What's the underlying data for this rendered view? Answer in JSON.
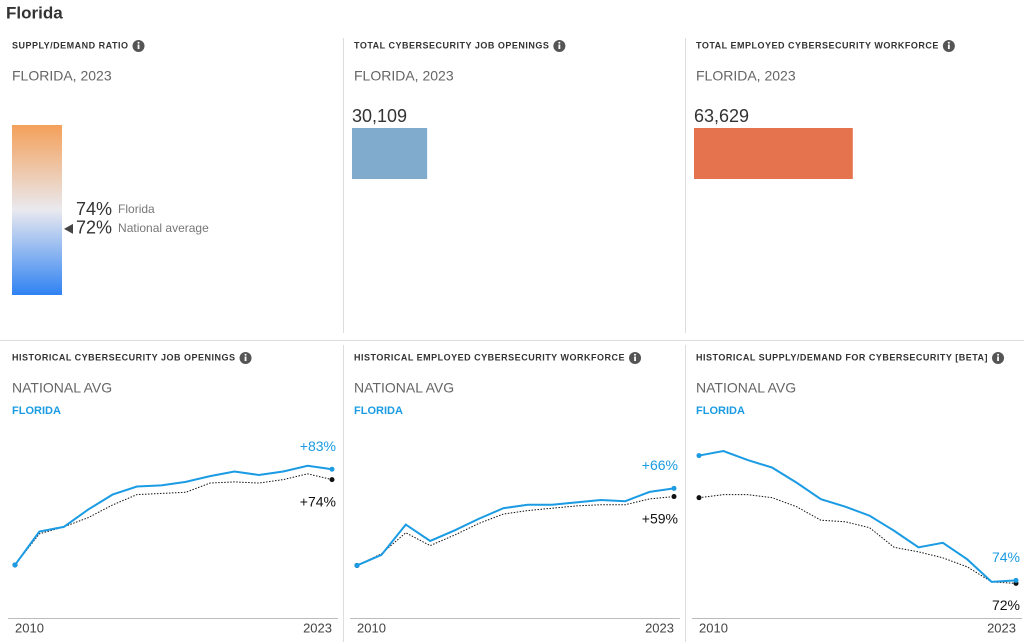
{
  "title": "Florida",
  "chart_data": [
    {
      "type": "gauge",
      "title": "SUPPLY/DEMAND RATIO",
      "subtitle": "FLORIDA, 2023",
      "ylim": [
        65,
        83
      ],
      "gradient": [
        "#f4a05a",
        "#e9e9ef",
        "#2f82f2"
      ],
      "series": [
        {
          "name": "Florida",
          "values": [
            74
          ],
          "value_labels": [
            "74%"
          ]
        },
        {
          "name": "National average",
          "values": [
            72
          ],
          "value_labels": [
            "72%"
          ]
        }
      ]
    },
    {
      "type": "bar",
      "title": "TOTAL CYBERSECURITY JOB OPENINGS",
      "subtitle": "FLORIDA, 2023",
      "values": [
        30109
      ],
      "value_labels": [
        "30,109"
      ],
      "color": "#80abcd",
      "xlim": [
        0,
        125000
      ]
    },
    {
      "type": "bar",
      "title": "TOTAL EMPLOYED CYBERSECURITY WORKFORCE",
      "subtitle": "FLORIDA, 2023",
      "values": [
        63629
      ],
      "value_labels": [
        "63,629"
      ],
      "color": "#e5734d",
      "xlim": [
        0,
        125000
      ]
    },
    {
      "type": "line",
      "title": "HISTORICAL CYBERSECURITY JOB OPENINGS",
      "x": [
        2010,
        2011,
        2012,
        2013,
        2014,
        2015,
        2016,
        2017,
        2018,
        2019,
        2020,
        2021,
        2022,
        2023
      ],
      "xlim": [
        2010,
        2023
      ],
      "xticks": [
        2010,
        2023
      ],
      "ylim": [
        -46,
        117
      ],
      "series": [
        {
          "name": "NATIONAL AVG",
          "color": "#111111",
          "values": [
            0,
            27,
            33,
            41,
            52,
            61,
            62,
            63,
            71,
            72,
            71,
            74,
            79,
            74
          ],
          "value_labels": [
            null,
            null,
            null,
            null,
            null,
            null,
            null,
            null,
            null,
            null,
            null,
            null,
            null,
            "+74%"
          ]
        },
        {
          "name": "FLORIDA",
          "color": "#1a9be3",
          "values": [
            0,
            29,
            33,
            48,
            61,
            68,
            69,
            72,
            77,
            81,
            78,
            81,
            86,
            83
          ],
          "value_labels": [
            null,
            null,
            null,
            null,
            null,
            null,
            null,
            null,
            null,
            null,
            null,
            null,
            null,
            "+83%"
          ]
        }
      ]
    },
    {
      "type": "line",
      "title": "HISTORICAL EMPLOYED CYBERSECURITY WORKFORCE",
      "x": [
        2010,
        2011,
        2012,
        2013,
        2014,
        2015,
        2016,
        2017,
        2018,
        2019,
        2020,
        2021,
        2022,
        2023
      ],
      "xlim": [
        2010,
        2023
      ],
      "xticks": [
        2010,
        2023
      ],
      "ylim": [
        -45,
        116
      ],
      "series": [
        {
          "name": "NATIONAL AVG",
          "color": "#111111",
          "values": [
            0,
            10,
            28,
            17,
            26,
            36,
            44,
            47,
            49,
            51,
            52,
            52,
            57,
            59
          ],
          "value_labels": [
            null,
            null,
            null,
            null,
            null,
            null,
            null,
            null,
            null,
            null,
            null,
            null,
            null,
            "+59%"
          ]
        },
        {
          "name": "FLORIDA",
          "color": "#1a9be3",
          "values": [
            0,
            9,
            35,
            21,
            30,
            40,
            49,
            52,
            52,
            54,
            56,
            55,
            63,
            66
          ],
          "value_labels": [
            null,
            null,
            null,
            null,
            null,
            null,
            null,
            null,
            null,
            null,
            null,
            null,
            null,
            "+66%"
          ]
        }
      ]
    },
    {
      "type": "line",
      "title": "HISTORICAL SUPPLY/DEMAND FOR CYBERSECURITY [BETA]",
      "x": [
        2010,
        2011,
        2012,
        2013,
        2014,
        2015,
        2016,
        2017,
        2018,
        2019,
        2020,
        2021,
        2022,
        2023
      ],
      "xlim": [
        2010,
        2023
      ],
      "xticks": [
        2010,
        2023
      ],
      "ylim": [
        49,
        174
      ],
      "series": [
        {
          "name": "NATIONAL AVG",
          "color": "#111111",
          "values": [
            129,
            131,
            131,
            129,
            123,
            114,
            113,
            109,
            96,
            93,
            89,
            83,
            73,
            72
          ],
          "value_labels": [
            null,
            null,
            null,
            null,
            null,
            null,
            null,
            null,
            null,
            null,
            null,
            null,
            null,
            "72%"
          ]
        },
        {
          "name": "FLORIDA",
          "color": "#1a9be3",
          "values": [
            157,
            160,
            154,
            149,
            139,
            128,
            123,
            117,
            107,
            96,
            99,
            88,
            73,
            74
          ],
          "value_labels": [
            null,
            null,
            null,
            null,
            null,
            null,
            null,
            null,
            null,
            null,
            null,
            null,
            null,
            "74%"
          ]
        }
      ]
    }
  ]
}
